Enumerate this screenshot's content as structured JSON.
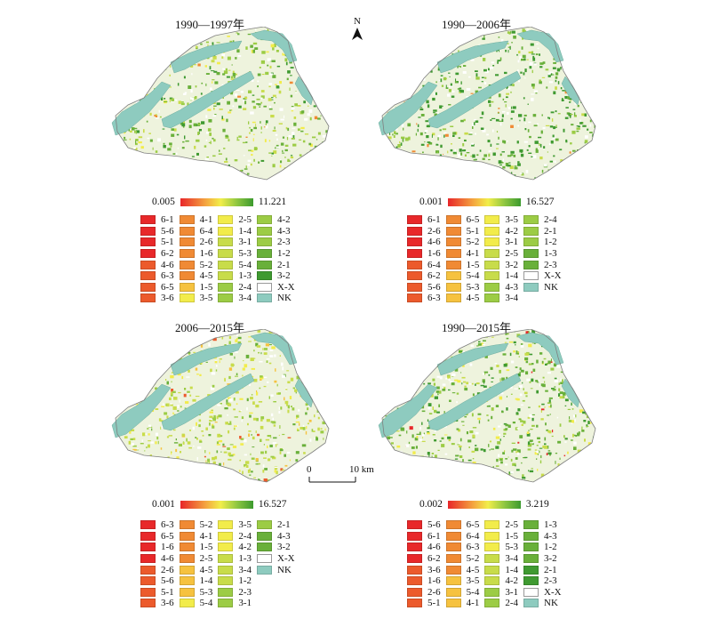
{
  "colors": {
    "water": "#8ecbbf",
    "land_bg": "#eef3dd",
    "outline": "#7f7f7f",
    "white_cls": "#ffffff",
    "c6": "#e8282a",
    "c5": "#ec5a2c",
    "c4": "#f08a34",
    "c3": "#f6c23f",
    "c2a": "#f2ec4a",
    "c2b": "#c8dc4a",
    "c1a": "#9ccc45",
    "c1b": "#69b03a",
    "c0": "#3f9a31"
  },
  "north_arrow": {
    "label": "N",
    "icon": "north-arrow-icon"
  },
  "scale_bar": {
    "zero": "0",
    "distance": "10 km"
  },
  "panels": [
    {
      "title": "1990—1997年",
      "grad_min": "0.005",
      "grad_max": "11.221",
      "legend_columns": [
        [
          [
            "6-1",
            "c6"
          ],
          [
            "5-6",
            "c6"
          ],
          [
            "5-1",
            "c6"
          ],
          [
            "6-2",
            "c6"
          ],
          [
            "4-6",
            "c5"
          ],
          [
            "6-3",
            "c5"
          ],
          [
            "6-5",
            "c5"
          ],
          [
            "3-6",
            "c5"
          ]
        ],
        [
          [
            "4-1",
            "c4"
          ],
          [
            "6-4",
            "c4"
          ],
          [
            "2-6",
            "c4"
          ],
          [
            "1-6",
            "c4"
          ],
          [
            "5-2",
            "c4"
          ],
          [
            "4-5",
            "c4"
          ],
          [
            "1-5",
            "c3"
          ],
          [
            "3-5",
            "c2a"
          ]
        ],
        [
          [
            "2-5",
            "c2a"
          ],
          [
            "1-4",
            "c2a"
          ],
          [
            "3-1",
            "c2b"
          ],
          [
            "5-3",
            "c2b"
          ],
          [
            "5-4",
            "c2b"
          ],
          [
            "1-3",
            "c2b"
          ],
          [
            "2-4",
            "c1a"
          ],
          [
            "3-4",
            "c1a"
          ]
        ],
        [
          [
            "4-2",
            "c1a"
          ],
          [
            "4-3",
            "c1a"
          ],
          [
            "2-3",
            "c1a"
          ],
          [
            "1-2",
            "c1b"
          ],
          [
            "2-1",
            "c1b"
          ],
          [
            "3-2",
            "c0"
          ],
          [
            "X-X",
            "white_cls"
          ],
          [
            "NK",
            "water"
          ]
        ]
      ]
    },
    {
      "title": "1990—2006年",
      "grad_min": "0.001",
      "grad_max": "16.527",
      "legend_columns": [
        [
          [
            "6-1",
            "c6"
          ],
          [
            "2-6",
            "c6"
          ],
          [
            "4-6",
            "c6"
          ],
          [
            "1-6",
            "c6"
          ],
          [
            "6-4",
            "c5"
          ],
          [
            "6-2",
            "c5"
          ],
          [
            "5-6",
            "c5"
          ],
          [
            "6-3",
            "c5"
          ]
        ],
        [
          [
            "6-5",
            "c4"
          ],
          [
            "5-1",
            "c4"
          ],
          [
            "5-2",
            "c4"
          ],
          [
            "4-1",
            "c4"
          ],
          [
            "1-5",
            "c4"
          ],
          [
            "5-4",
            "c3"
          ],
          [
            "5-3",
            "c3"
          ],
          [
            "4-5",
            "c3"
          ]
        ],
        [
          [
            "3-5",
            "c2a"
          ],
          [
            "4-2",
            "c2a"
          ],
          [
            "3-1",
            "c2a"
          ],
          [
            "2-5",
            "c2b"
          ],
          [
            "3-2",
            "c2b"
          ],
          [
            "1-4",
            "c2b"
          ],
          [
            "4-3",
            "c1a"
          ],
          [
            "3-4",
            "c1a"
          ]
        ],
        [
          [
            "2-4",
            "c1a"
          ],
          [
            "2-1",
            "c1a"
          ],
          [
            "1-2",
            "c1a"
          ],
          [
            "1-3",
            "c1b"
          ],
          [
            "2-3",
            "c1b"
          ],
          [
            "X-X",
            "white_cls"
          ],
          [
            "NK",
            "water"
          ]
        ]
      ]
    },
    {
      "title": "2006—2015年",
      "grad_min": "0.001",
      "grad_max": "16.527",
      "legend_columns": [
        [
          [
            "6-3",
            "c6"
          ],
          [
            "6-5",
            "c6"
          ],
          [
            "1-6",
            "c6"
          ],
          [
            "4-6",
            "c6"
          ],
          [
            "2-6",
            "c5"
          ],
          [
            "5-6",
            "c5"
          ],
          [
            "5-1",
            "c5"
          ],
          [
            "3-6",
            "c5"
          ]
        ],
        [
          [
            "5-2",
            "c4"
          ],
          [
            "4-1",
            "c4"
          ],
          [
            "1-5",
            "c4"
          ],
          [
            "2-5",
            "c4"
          ],
          [
            "4-5",
            "c3"
          ],
          [
            "1-4",
            "c3"
          ],
          [
            "5-3",
            "c3"
          ],
          [
            "5-4",
            "c2a"
          ]
        ],
        [
          [
            "3-5",
            "c2a"
          ],
          [
            "2-4",
            "c2a"
          ],
          [
            "4-2",
            "c2a"
          ],
          [
            "1-3",
            "c2b"
          ],
          [
            "3-4",
            "c2b"
          ],
          [
            "1-2",
            "c2b"
          ],
          [
            "2-3",
            "c1a"
          ],
          [
            "3-1",
            "c1a"
          ]
        ],
        [
          [
            "2-1",
            "c1a"
          ],
          [
            "4-3",
            "c1b"
          ],
          [
            "3-2",
            "c1b"
          ],
          [
            "X-X",
            "white_cls"
          ],
          [
            "NK",
            "water"
          ]
        ]
      ]
    },
    {
      "title": "1990—2015年",
      "grad_min": "0.002",
      "grad_max": "3.219",
      "legend_columns": [
        [
          [
            "5-6",
            "c6"
          ],
          [
            "6-1",
            "c6"
          ],
          [
            "4-6",
            "c6"
          ],
          [
            "6-2",
            "c6"
          ],
          [
            "3-6",
            "c5"
          ],
          [
            "1-6",
            "c5"
          ],
          [
            "2-6",
            "c5"
          ],
          [
            "5-1",
            "c5"
          ]
        ],
        [
          [
            "6-5",
            "c4"
          ],
          [
            "6-4",
            "c4"
          ],
          [
            "6-3",
            "c4"
          ],
          [
            "5-2",
            "c4"
          ],
          [
            "4-5",
            "c4"
          ],
          [
            "3-5",
            "c3"
          ],
          [
            "5-4",
            "c3"
          ],
          [
            "4-1",
            "c3"
          ]
        ],
        [
          [
            "2-5",
            "c2a"
          ],
          [
            "1-5",
            "c2a"
          ],
          [
            "5-3",
            "c2a"
          ],
          [
            "3-4",
            "c2b"
          ],
          [
            "1-4",
            "c2b"
          ],
          [
            "4-2",
            "c2b"
          ],
          [
            "3-1",
            "c1a"
          ],
          [
            "2-4",
            "c1a"
          ]
        ],
        [
          [
            "1-3",
            "c1b"
          ],
          [
            "4-3",
            "c1b"
          ],
          [
            "1-2",
            "c1b"
          ],
          [
            "3-2",
            "c1b"
          ],
          [
            "2-1",
            "c0"
          ],
          [
            "2-3",
            "c0"
          ],
          [
            "X-X",
            "white_cls"
          ],
          [
            "NK",
            "water"
          ]
        ]
      ]
    }
  ]
}
